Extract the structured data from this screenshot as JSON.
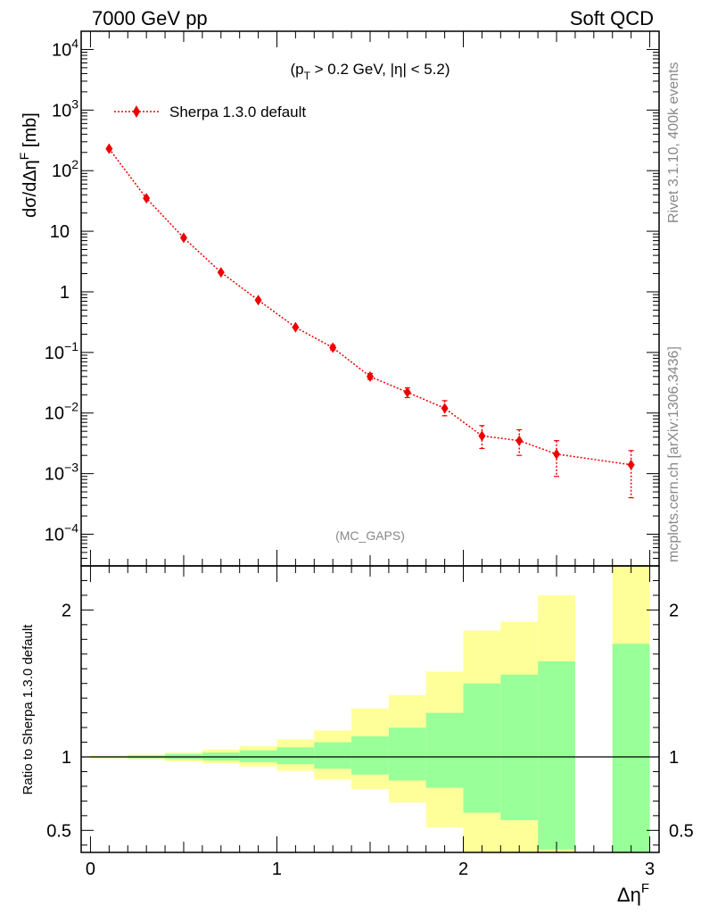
{
  "header": {
    "left": "7000 GeV pp",
    "right": "Soft QCD"
  },
  "side_labels": {
    "rivet": "Rivet 3.1.10,  400k events",
    "mcplots": "mcplots.cern.ch [arXiv:1306.3436]"
  },
  "colors": {
    "series": "#ee0000",
    "band_outer": "#ffff99",
    "band_inner": "#99ff99",
    "watermark": "#888888"
  },
  "chart_data": [
    {
      "type": "line",
      "title": "",
      "cut_label": {
        "pre": "(p",
        "sub": "T",
        "post": " > 0.2 GeV, |η| < 5.2)"
      },
      "watermark": "(MC_GAPS)",
      "ylabel": {
        "pre": "dσ/dΔη",
        "sup": "F",
        "post": " [mb]"
      },
      "yscale": "log",
      "ylim": [
        3e-05,
        20000
      ],
      "xlim": [
        -0.05,
        3.05
      ],
      "legend_placement": "top-left",
      "yticks": [
        {
          "v": 10000,
          "base": "10",
          "exp": "4"
        },
        {
          "v": 1000,
          "base": "10",
          "exp": "3"
        },
        {
          "v": 100,
          "base": "10",
          "exp": "2"
        },
        {
          "v": 10,
          "base": "10",
          "exp": ""
        },
        {
          "v": 1,
          "base": "1",
          "exp": ""
        },
        {
          "v": 0.1,
          "base": "10",
          "exp": "−1"
        },
        {
          "v": 0.01,
          "base": "10",
          "exp": "−2"
        },
        {
          "v": 0.001,
          "base": "10",
          "exp": "−3"
        },
        {
          "v": 0.0001,
          "base": "10",
          "exp": "−4"
        }
      ],
      "series": [
        {
          "name": "Sherpa 1.3.0 default",
          "x": [
            0.1,
            0.3,
            0.5,
            0.7,
            0.9,
            1.1,
            1.3,
            1.5,
            1.7,
            1.9,
            2.1,
            2.3,
            2.5,
            2.9
          ],
          "y": [
            230,
            35,
            7.8,
            2.1,
            0.73,
            0.26,
            0.12,
            0.04,
            0.022,
            0.012,
            0.0042,
            0.0035,
            0.0021,
            0.0014
          ],
          "err_lo": [
            0,
            0,
            0,
            0,
            0,
            0,
            0.01,
            0.004,
            0.004,
            0.003,
            0.0016,
            0.0015,
            0.0012,
            0.001
          ],
          "err_hi": [
            0,
            0,
            0,
            0,
            0,
            0,
            0.012,
            0.005,
            0.004,
            0.004,
            0.002,
            0.0018,
            0.0014,
            0.001
          ]
        }
      ]
    },
    {
      "type": "area",
      "ylabel": "Ratio to Sherpa 1.3.0 default",
      "xlabel": {
        "pre": "Δη",
        "sup": "F"
      },
      "ylim": [
        0.35,
        2.3
      ],
      "xlim": [
        -0.05,
        3.05
      ],
      "xticks": [
        "0",
        "1",
        "2",
        "3"
      ],
      "xtick_values": [
        0,
        1,
        2,
        3
      ],
      "yticks": [
        "0.5",
        "1",
        "2"
      ],
      "ytick_values": [
        0.5,
        1,
        2
      ],
      "reference_line": 1,
      "bins": [
        {
          "x0": 0.0,
          "x1": 0.2,
          "inner": [
            0.995,
            1.005
          ],
          "outer": [
            0.99,
            1.01
          ]
        },
        {
          "x0": 0.2,
          "x1": 0.4,
          "inner": [
            0.99,
            1.01
          ],
          "outer": [
            0.985,
            1.015
          ]
        },
        {
          "x0": 0.4,
          "x1": 0.6,
          "inner": [
            0.985,
            1.02
          ],
          "outer": [
            0.97,
            1.03
          ]
        },
        {
          "x0": 0.6,
          "x1": 0.8,
          "inner": [
            0.975,
            1.03
          ],
          "outer": [
            0.955,
            1.05
          ]
        },
        {
          "x0": 0.8,
          "x1": 1.0,
          "inner": [
            0.965,
            1.045
          ],
          "outer": [
            0.935,
            1.075
          ]
        },
        {
          "x0": 1.0,
          "x1": 1.2,
          "inner": [
            0.95,
            1.065
          ],
          "outer": [
            0.905,
            1.12
          ]
        },
        {
          "x0": 1.2,
          "x1": 1.4,
          "inner": [
            0.92,
            1.1
          ],
          "outer": [
            0.845,
            1.18
          ]
        },
        {
          "x0": 1.4,
          "x1": 1.6,
          "inner": [
            0.88,
            1.14
          ],
          "outer": [
            0.78,
            1.33
          ]
        },
        {
          "x0": 1.6,
          "x1": 1.8,
          "inner": [
            0.84,
            1.2
          ],
          "outer": [
            0.69,
            1.42
          ]
        },
        {
          "x0": 1.8,
          "x1": 2.0,
          "inner": [
            0.79,
            1.3
          ],
          "outer": [
            0.52,
            1.58
          ]
        },
        {
          "x0": 2.0,
          "x1": 2.2,
          "inner": [
            0.62,
            1.5
          ],
          "outer": [
            0.35,
            1.86
          ]
        },
        {
          "x0": 2.2,
          "x1": 2.4,
          "inner": [
            0.57,
            1.56
          ],
          "outer": [
            0.35,
            1.92
          ]
        },
        {
          "x0": 2.4,
          "x1": 2.6,
          "inner": [
            0.37,
            1.65
          ],
          "outer": [
            0.35,
            2.1
          ]
        },
        {
          "x0": 2.8,
          "x1": 3.0,
          "inner": [
            0.35,
            1.77
          ],
          "outer": [
            0.35,
            2.3
          ]
        }
      ]
    }
  ]
}
